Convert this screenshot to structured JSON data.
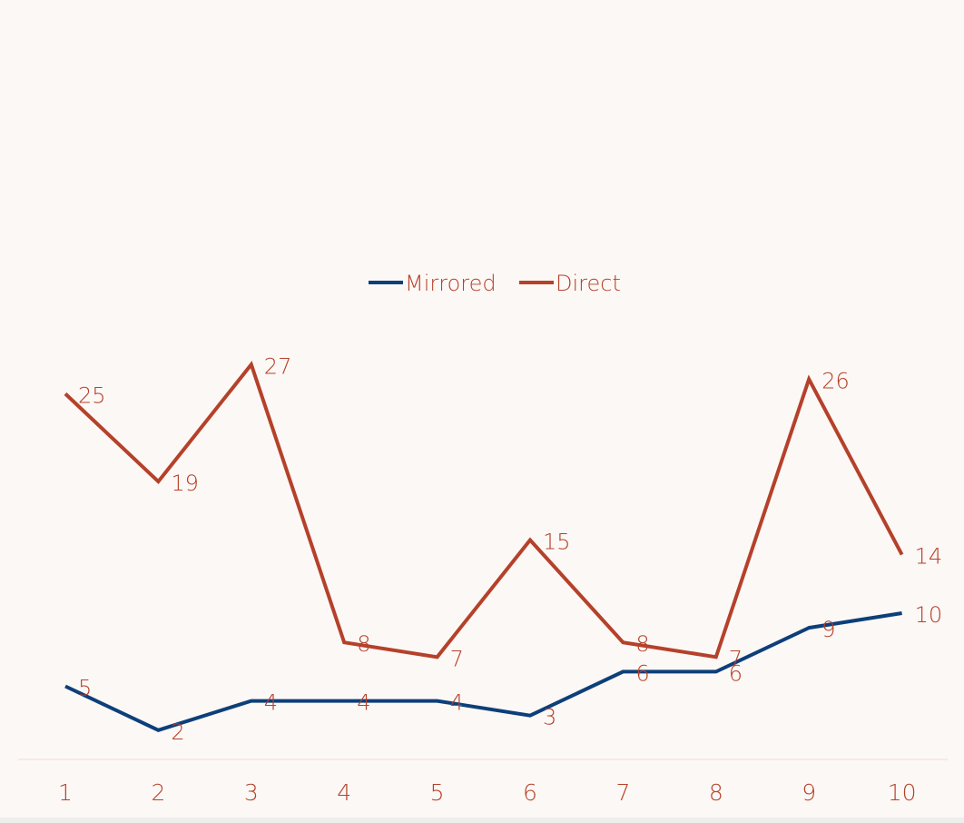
{
  "chart_data": {
    "type": "line",
    "categories": [
      "1",
      "2",
      "3",
      "4",
      "5",
      "6",
      "7",
      "8",
      "9",
      "10"
    ],
    "series": [
      {
        "name": "Mirrored",
        "color": "#0d3f7a",
        "values": [
          5,
          2,
          4,
          4,
          4,
          3,
          6,
          6,
          9,
          10
        ]
      },
      {
        "name": "Direct",
        "color": "#b5412a",
        "values": [
          25,
          19,
          27,
          8,
          7,
          15,
          8,
          7,
          26,
          14
        ]
      }
    ],
    "data_label_color": "#b5412a",
    "axis_label_color": "#b5412a",
    "axis_line_color": "#f1dcd6",
    "background": "#fcf8f5",
    "legend_position": "top",
    "ylim": [
      0,
      54
    ],
    "grid": false
  }
}
